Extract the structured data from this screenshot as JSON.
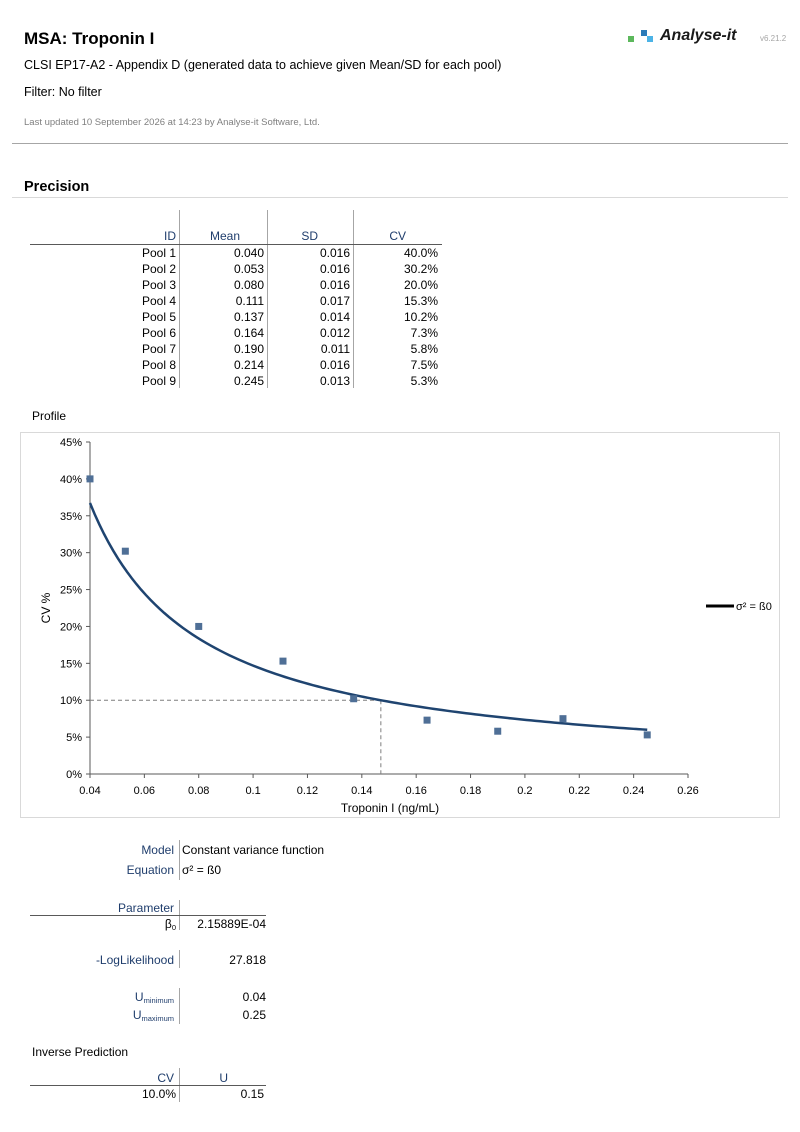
{
  "header": {
    "title": "MSA: Troponin I",
    "subtitle": "CLSI EP17-A2 - Appendix D (generated data to achieve given Mean/SD for each pool)",
    "filter": "Filter: No filter",
    "updated": "Last updated 10 September 2026 at 14:23 by Analyse-it Software, Ltd.",
    "logo_text": "Analyse-it",
    "version": "v6.21.2",
    "logo_colors": [
      "#5cb85c",
      "#2a7ab8",
      "#4cb3e6"
    ]
  },
  "precision": {
    "section_title": "Precision",
    "columns": [
      "ID",
      "Mean",
      "SD",
      "CV"
    ],
    "rows": [
      {
        "id": "Pool 1",
        "mean": "0.040",
        "sd": "0.016",
        "cv": "40.0%"
      },
      {
        "id": "Pool 2",
        "mean": "0.053",
        "sd": "0.016",
        "cv": "30.2%"
      },
      {
        "id": "Pool 3",
        "mean": "0.080",
        "sd": "0.016",
        "cv": "20.0%"
      },
      {
        "id": "Pool 4",
        "mean": "0.111",
        "sd": "0.017",
        "cv": "15.3%"
      },
      {
        "id": "Pool 5",
        "mean": "0.137",
        "sd": "0.014",
        "cv": "10.2%"
      },
      {
        "id": "Pool 6",
        "mean": "0.164",
        "sd": "0.012",
        "cv": "7.3%"
      },
      {
        "id": "Pool 7",
        "mean": "0.190",
        "sd": "0.011",
        "cv": "5.8%"
      },
      {
        "id": "Pool 8",
        "mean": "0.214",
        "sd": "0.016",
        "cv": "7.5%"
      },
      {
        "id": "Pool 9",
        "mean": "0.245",
        "sd": "0.013",
        "cv": "5.3%"
      }
    ]
  },
  "profile": {
    "label": "Profile"
  },
  "chart_data": {
    "type": "scatter",
    "xlabel": "Troponin I (ng/mL)",
    "ylabel": "CV %",
    "xlim": [
      0.04,
      0.26
    ],
    "ylim": [
      0,
      45
    ],
    "x_ticks": [
      "0.04",
      "0.06",
      "0.08",
      "0.1",
      "0.12",
      "0.14",
      "0.16",
      "0.18",
      "0.2",
      "0.22",
      "0.24",
      "0.26"
    ],
    "y_ticks": [
      "0%",
      "5%",
      "10%",
      "15%",
      "20%",
      "25%",
      "30%",
      "35%",
      "40%",
      "45%"
    ],
    "grid": false,
    "legend_position": "right",
    "legend": "σ² = ß0",
    "point_color": "#4f6f96",
    "curve_color": "#1f4470",
    "points": [
      {
        "x": 0.04,
        "y": 40.0
      },
      {
        "x": 0.053,
        "y": 30.2
      },
      {
        "x": 0.08,
        "y": 20.0
      },
      {
        "x": 0.111,
        "y": 15.3
      },
      {
        "x": 0.137,
        "y": 10.2
      },
      {
        "x": 0.164,
        "y": 7.3
      },
      {
        "x": 0.19,
        "y": 5.8
      },
      {
        "x": 0.214,
        "y": 7.5
      },
      {
        "x": 0.245,
        "y": 5.3
      }
    ],
    "fit": {
      "beta0": 0.000215889,
      "x_range": [
        0.04,
        0.245
      ]
    },
    "reference": {
      "cv": 10.0,
      "u": 0.147
    }
  },
  "model": {
    "model_label": "Model",
    "model_value": "Constant variance function",
    "equation_label": "Equation",
    "equation_value": "σ² = ß0",
    "parameter_label": "Parameter",
    "beta_label": "β",
    "beta_sub": "0",
    "beta_value": "2.15889E-04",
    "loglik_label": "-LogLikelihood",
    "loglik_value": "27.818",
    "umin_label": "U",
    "umin_sub": "minimum",
    "umin_value": "0.04",
    "umax_label": "U",
    "umax_sub": "maximum",
    "umax_value": "0.25"
  },
  "inverse": {
    "title": "Inverse Prediction",
    "columns": [
      "CV",
      "U"
    ],
    "cv": "10.0%",
    "u": "0.15"
  }
}
